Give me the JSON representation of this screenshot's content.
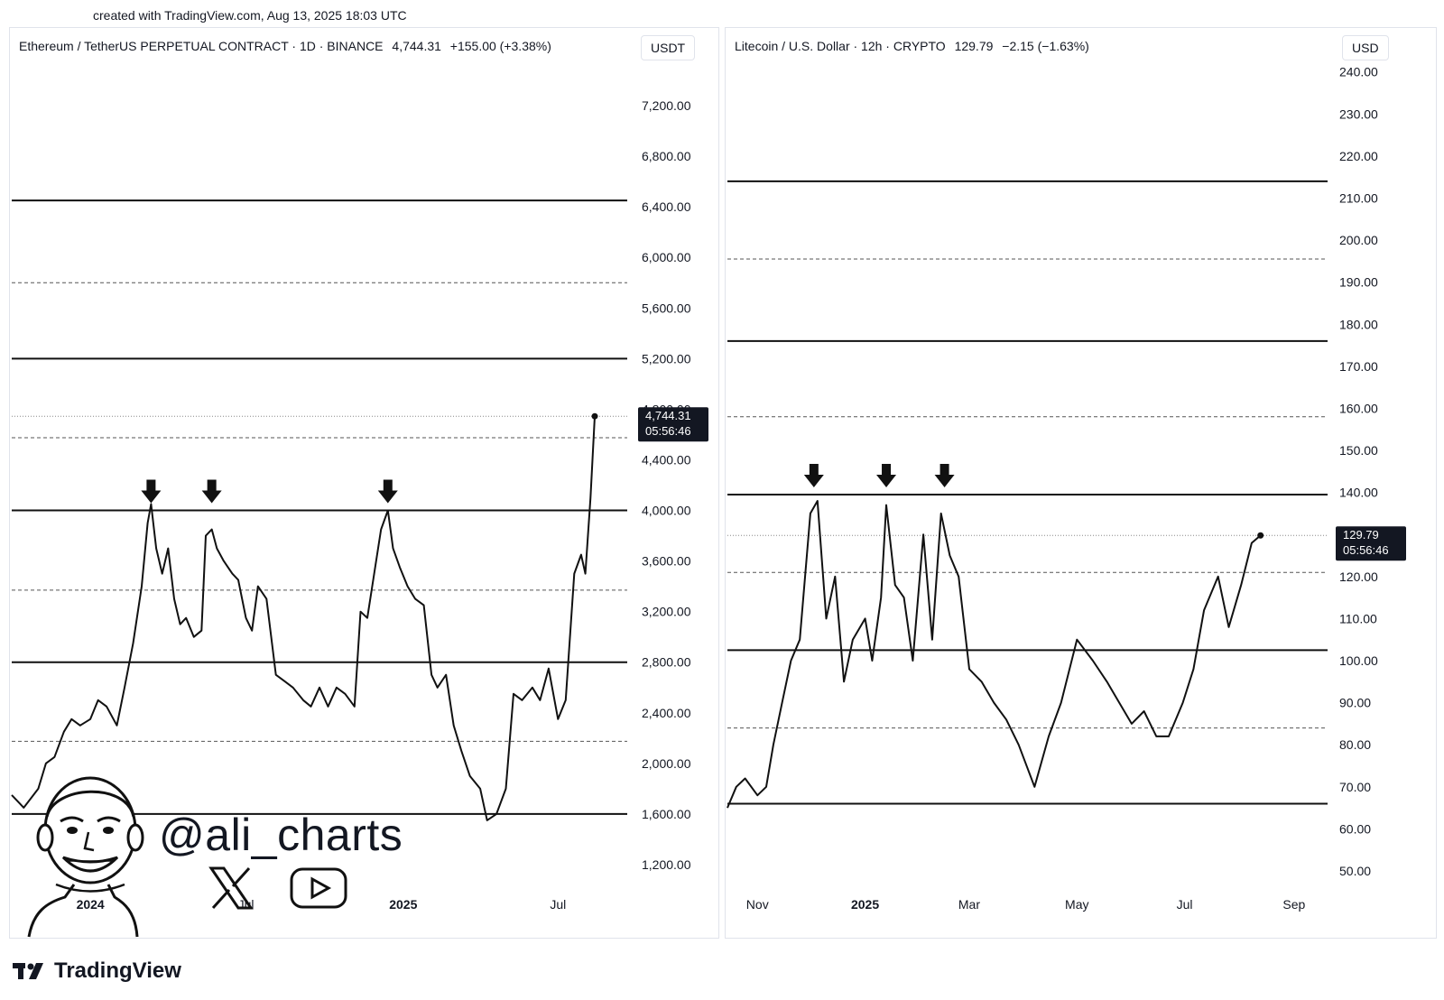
{
  "watermark": {
    "created": "created with TradingView.com, Aug 13, 2025 18:03 UTC"
  },
  "branding": {
    "handle": "@ali_charts",
    "logo_text": "TradingView",
    "icons": [
      "x-icon",
      "youtube-icon",
      "avatar-caricature"
    ]
  },
  "chart_data": [
    {
      "type": "line",
      "symbol": "Ethereum / TetherUS PERPETUAL CONTRACT · 1D · BINANCE",
      "last_price": "4,744.31",
      "change": "+155.00 (+3.38%)",
      "currency": "USDT",
      "countdown": "05:56:46",
      "ylim": [
        1000,
        7400
      ],
      "y_ticks": [
        1200,
        1600,
        2000,
        2400,
        2800,
        3200,
        3600,
        4000,
        4400,
        4800,
        5200,
        5600,
        6000,
        6400,
        6800,
        7200
      ],
      "y_tick_labels": [
        "1,200.00",
        "1,600.00",
        "2,000.00",
        "2,400.00",
        "2,800.00",
        "3,200.00",
        "3,600.00",
        "4,000.00",
        "4,400.00",
        "4,800.00",
        "5,200.00",
        "5,600.00",
        "6,000.00",
        "6,400.00",
        "6,800.00",
        "7,200.00"
      ],
      "x_range": [
        "2023-10-01",
        "2025-09-20"
      ],
      "x_ticks": [
        {
          "date": "2024-01-01",
          "label": "2024",
          "bold": true
        },
        {
          "date": "2024-07-01",
          "label": "Jul",
          "bold": false
        },
        {
          "date": "2025-01-01",
          "label": "2025",
          "bold": true
        },
        {
          "date": "2025-07-01",
          "label": "Jul",
          "bold": false
        }
      ],
      "solid_levels": [
        1600,
        2800,
        4000,
        5200,
        6450
      ],
      "dashed_levels": [
        2175,
        3370,
        4575,
        5800
      ],
      "last_price_value": 4744.31,
      "arrow_dates": [
        "2024-03-12",
        "2024-05-22",
        "2024-12-14"
      ],
      "series": [
        {
          "x": [
            "2023-10-01",
            "2023-10-15",
            "2023-11-01",
            "2023-11-10",
            "2023-11-20",
            "2023-12-01",
            "2023-12-10",
            "2023-12-20",
            "2024-01-01",
            "2024-01-10",
            "2024-01-20",
            "2024-02-01",
            "2024-02-10",
            "2024-02-20",
            "2024-03-01",
            "2024-03-08",
            "2024-03-12",
            "2024-03-18",
            "2024-03-25",
            "2024-04-01",
            "2024-04-08",
            "2024-04-15",
            "2024-04-22",
            "2024-05-01",
            "2024-05-10",
            "2024-05-15",
            "2024-05-22",
            "2024-05-28",
            "2024-06-05",
            "2024-06-15",
            "2024-06-22",
            "2024-07-01",
            "2024-07-08",
            "2024-07-15",
            "2024-07-25",
            "2024-08-05",
            "2024-08-15",
            "2024-08-25",
            "2024-09-06",
            "2024-09-15",
            "2024-09-25",
            "2024-10-05",
            "2024-10-15",
            "2024-10-25",
            "2024-11-05",
            "2024-11-12",
            "2024-11-20",
            "2024-11-28",
            "2024-12-06",
            "2024-12-14",
            "2024-12-20",
            "2024-12-28",
            "2025-01-06",
            "2025-01-15",
            "2025-01-25",
            "2025-02-03",
            "2025-02-10",
            "2025-02-20",
            "2025-03-01",
            "2025-03-10",
            "2025-03-20",
            "2025-04-01",
            "2025-04-09",
            "2025-04-20",
            "2025-05-01",
            "2025-05-10",
            "2025-05-20",
            "2025-06-01",
            "2025-06-10",
            "2025-06-20",
            "2025-07-01",
            "2025-07-10",
            "2025-07-20",
            "2025-07-28",
            "2025-08-02",
            "2025-08-08",
            "2025-08-13"
          ],
          "y": [
            1750,
            1650,
            1800,
            2000,
            2050,
            2250,
            2350,
            2300,
            2350,
            2500,
            2450,
            2300,
            2600,
            2950,
            3400,
            3900,
            4050,
            3700,
            3500,
            3700,
            3300,
            3100,
            3150,
            3000,
            3050,
            3800,
            3850,
            3700,
            3600,
            3500,
            3450,
            3150,
            3050,
            3400,
            3300,
            2700,
            2650,
            2600,
            2500,
            2450,
            2600,
            2450,
            2600,
            2550,
            2450,
            3200,
            3150,
            3500,
            3850,
            4000,
            3700,
            3550,
            3400,
            3300,
            3250,
            2700,
            2600,
            2700,
            2300,
            2100,
            1900,
            1800,
            1550,
            1600,
            1800,
            2550,
            2500,
            2600,
            2500,
            2750,
            2350,
            2500,
            3500,
            3650,
            3500,
            4100,
            4744.31
          ]
        }
      ]
    },
    {
      "type": "line",
      "symbol": "Litecoin / U.S. Dollar · 12h · CRYPTO",
      "last_price": "129.79",
      "change": "−2.15 (−1.63%)",
      "currency": "USD",
      "countdown": "05:56:46",
      "ylim": [
        44,
        241
      ],
      "y_ticks": [
        50,
        60,
        70,
        80,
        90,
        100,
        110,
        120,
        130,
        140,
        150,
        160,
        170,
        180,
        190,
        200,
        210,
        220,
        230,
        240
      ],
      "y_tick_labels": [
        "50.00",
        "60.00",
        "70.00",
        "80.00",
        "90.00",
        "100.00",
        "110.00",
        "120.00",
        "130.00",
        "140.00",
        "150.00",
        "160.00",
        "170.00",
        "180.00",
        "190.00",
        "200.00",
        "210.00",
        "220.00",
        "230.00",
        "240.00"
      ],
      "x_range": [
        "2024-10-15",
        "2025-09-20"
      ],
      "x_ticks": [
        {
          "date": "2024-11-01",
          "label": "Nov",
          "bold": false
        },
        {
          "date": "2025-01-01",
          "label": "2025",
          "bold": true
        },
        {
          "date": "2025-03-01",
          "label": "Mar",
          "bold": false
        },
        {
          "date": "2025-05-01",
          "label": "May",
          "bold": false
        },
        {
          "date": "2025-07-01",
          "label": "Jul",
          "bold": false
        },
        {
          "date": "2025-09-01",
          "label": "Sep",
          "bold": false
        }
      ],
      "solid_levels": [
        66,
        102.5,
        139.5,
        176,
        214
      ],
      "dashed_levels": [
        84,
        121,
        158,
        195.5
      ],
      "last_price_value": 129.79,
      "arrow_dates": [
        "2024-12-03",
        "2025-01-13",
        "2025-02-15"
      ],
      "series": [
        {
          "x": [
            "2024-10-15",
            "2024-10-20",
            "2024-10-25",
            "2024-11-01",
            "2024-11-06",
            "2024-11-10",
            "2024-11-15",
            "2024-11-20",
            "2024-11-25",
            "2024-12-01",
            "2024-12-05",
            "2024-12-10",
            "2024-12-15",
            "2024-12-20",
            "2024-12-25",
            "2025-01-01",
            "2025-01-05",
            "2025-01-10",
            "2025-01-13",
            "2025-01-18",
            "2025-01-23",
            "2025-01-28",
            "2025-02-03",
            "2025-02-08",
            "2025-02-13",
            "2025-02-18",
            "2025-02-23",
            "2025-03-01",
            "2025-03-08",
            "2025-03-15",
            "2025-03-22",
            "2025-03-29",
            "2025-04-07",
            "2025-04-15",
            "2025-04-22",
            "2025-05-01",
            "2025-05-10",
            "2025-05-18",
            "2025-05-25",
            "2025-06-01",
            "2025-06-08",
            "2025-06-15",
            "2025-06-22",
            "2025-06-30",
            "2025-07-06",
            "2025-07-12",
            "2025-07-20",
            "2025-07-26",
            "2025-08-02",
            "2025-08-08",
            "2025-08-13"
          ],
          "y": [
            65,
            70,
            72,
            68,
            70,
            80,
            90,
            100,
            105,
            135,
            138,
            110,
            120,
            95,
            105,
            110,
            100,
            115,
            137,
            118,
            115,
            100,
            130,
            105,
            135,
            125,
            120,
            98,
            95,
            90,
            86,
            80,
            70,
            82,
            90,
            105,
            100,
            95,
            90,
            85,
            88,
            82,
            82,
            90,
            98,
            112,
            120,
            108,
            118,
            128,
            129.79
          ]
        }
      ]
    }
  ]
}
